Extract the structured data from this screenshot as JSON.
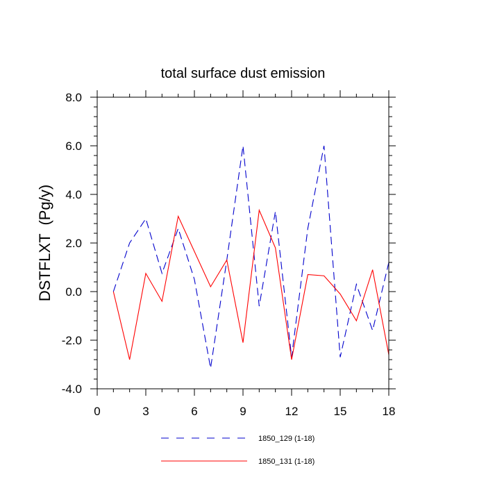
{
  "chart_data": {
    "type": "line",
    "title": "total surface dust emission",
    "xlabel": "",
    "ylabel": "DSTFLXT  (Pg/y)",
    "xlim": [
      0,
      18
    ],
    "ylim": [
      -4,
      8
    ],
    "x_ticks": [
      0,
      3,
      6,
      9,
      12,
      15,
      18
    ],
    "x_tick_labels": [
      "0",
      "3",
      "6",
      "9",
      "12",
      "15",
      "18"
    ],
    "y_ticks": [
      -4,
      -2,
      0,
      2,
      4,
      6,
      8
    ],
    "y_tick_labels": [
      "-4.0",
      "-2.0",
      "0.0",
      "2.0",
      "4.0",
      "6.0",
      "8.0"
    ],
    "grid": false,
    "legend_position": "bottom",
    "x": [
      1,
      2,
      3,
      4,
      5,
      6,
      7,
      8,
      9,
      10,
      11,
      12,
      13,
      14,
      15,
      16,
      17,
      18
    ],
    "series": [
      {
        "name": "1850_129 (1-18)",
        "color": "#0000cc",
        "dash": "dashed",
        "values": [
          0.0,
          2.0,
          3.0,
          0.75,
          2.6,
          0.5,
          -3.15,
          1.3,
          6.0,
          -0.6,
          3.3,
          -2.7,
          2.6,
          6.0,
          -2.7,
          0.3,
          -1.6,
          1.2
        ]
      },
      {
        "name": "1850_131 (1-18)",
        "color": "#ff0000",
        "dash": "solid",
        "values": [
          0.0,
          -2.8,
          0.75,
          -0.4,
          3.1,
          1.65,
          0.2,
          1.3,
          -2.1,
          3.35,
          1.8,
          -2.8,
          0.7,
          0.65,
          -0.1,
          -1.2,
          0.9,
          -2.6
        ]
      }
    ]
  }
}
